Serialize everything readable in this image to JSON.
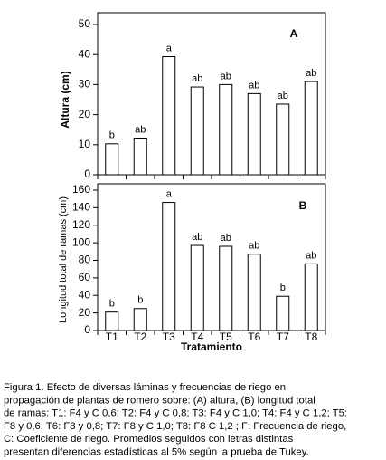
{
  "chart_data": [
    {
      "type": "bar",
      "panel": "A",
      "y_label": "Altura (cm)",
      "values": [
        10.3,
        12.2,
        39.3,
        29.2,
        30,
        27,
        23.5,
        31
      ],
      "letters": [
        "b",
        "ab",
        "a",
        "ab",
        "ab",
        "ab",
        "ab",
        "ab"
      ],
      "color": "#ffffff",
      "ylim": [
        0,
        50
      ],
      "yticks": [
        0,
        10,
        20,
        30,
        40,
        50
      ]
    },
    {
      "type": "bar",
      "panel": "B",
      "y_label": "Longitud total de ramas (cm)",
      "x_label": "Tratamiento",
      "categories": [
        "T1",
        "T2",
        "T3",
        "T4",
        "T5",
        "T6",
        "T7",
        "T8"
      ],
      "values": [
        21,
        25,
        146,
        97,
        96,
        87,
        39,
        76
      ],
      "letters": [
        "b",
        "b",
        "a",
        "ab",
        "ab",
        "ab",
        "b",
        "ab"
      ],
      "color": "#ffffff",
      "ylim": [
        0,
        160
      ],
      "yticks": [
        0,
        20,
        40,
        60,
        80,
        100,
        120,
        140,
        160
      ]
    }
  ],
  "caption": [
    "Figura 1. Efecto de diversas láminas y frecuencias de riego en",
    "propagación de plantas de romero sobre: (A) altura, (B) longitud total",
    "de ramas: T1: F4 y C 0,6; T2: F4 y C 0,8; T3: F4 y C 1,0; T4: F4 y C 1,2; T5:",
    "F8 y 0,6; T6: F8 y 0,8; T7: F8 y C 1,0; T8: F8 C 1,2 ; F: Frecuencia de riego,",
    "C: Coeficiente de riego. Promedios seguidos con letras distintas",
    "presentan diferencias estadísticas al 5% según la prueba de Tukey."
  ]
}
